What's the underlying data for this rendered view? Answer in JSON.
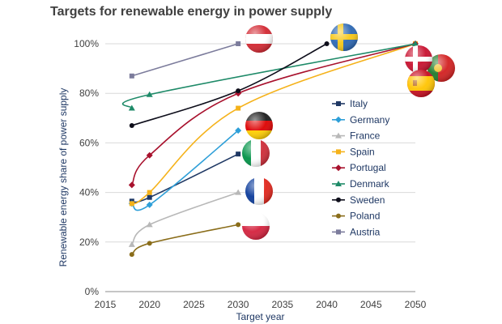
{
  "chart_data": {
    "type": "line",
    "title": "Targets for renewable energy in power supply",
    "xlabel": "Target year",
    "ylabel": "Renewable energy share of power supply",
    "xlim": [
      2015,
      2050
    ],
    "ylim": [
      0,
      100
    ],
    "x_ticks": [
      "2015",
      "2020",
      "2025",
      "2030",
      "2035",
      "2040",
      "2045",
      "2050"
    ],
    "y_ticks": [
      "0%",
      "20%",
      "40%",
      "60%",
      "80%",
      "100%"
    ],
    "legend_position": "center-right",
    "series": [
      {
        "name": "Italy",
        "color": "#1f3864",
        "marker": "square",
        "flag": "italy-flag-icon",
        "points": [
          [
            2018,
            36.5
          ],
          [
            2020,
            38
          ],
          [
            2030,
            55.5
          ]
        ]
      },
      {
        "name": "Germany",
        "color": "#2e9fd8",
        "marker": "diamond",
        "flag": "germany-flag-icon",
        "points": [
          [
            2018,
            35.5
          ],
          [
            2020,
            35
          ],
          [
            2030,
            65
          ]
        ]
      },
      {
        "name": "France",
        "color": "#b8b8b8",
        "marker": "triangle",
        "flag": "france-flag-icon",
        "points": [
          [
            2018,
            19
          ],
          [
            2020,
            27
          ],
          [
            2030,
            40
          ]
        ]
      },
      {
        "name": "Spain",
        "color": "#f5b21a",
        "marker": "square",
        "flag": "spain-flag-icon",
        "points": [
          [
            2018,
            35.5
          ],
          [
            2020,
            40
          ],
          [
            2030,
            74
          ],
          [
            2050,
            100
          ]
        ]
      },
      {
        "name": "Portugal",
        "color": "#a8112d",
        "marker": "diamond",
        "flag": "portugal-flag-icon",
        "points": [
          [
            2018,
            43
          ],
          [
            2020,
            55
          ],
          [
            2030,
            80
          ],
          [
            2050,
            100
          ]
        ]
      },
      {
        "name": "Denmark",
        "color": "#1e8a68",
        "marker": "triangle",
        "flag": "denmark-flag-icon",
        "points": [
          [
            2018,
            74
          ],
          [
            2020,
            79.5
          ],
          [
            2050,
            100
          ]
        ]
      },
      {
        "name": "Sweden",
        "color": "#0d0d1a",
        "marker": "circle",
        "flag": "sweden-flag-icon",
        "points": [
          [
            2018,
            67
          ],
          [
            2030,
            81
          ],
          [
            2040,
            100
          ]
        ]
      },
      {
        "name": "Poland",
        "color": "#8a6d1a",
        "marker": "circle",
        "flag": "poland-flag-icon",
        "points": [
          [
            2018,
            15
          ],
          [
            2020,
            19.5
          ],
          [
            2030,
            27
          ]
        ]
      },
      {
        "name": "Austria",
        "color": "#7c7c9c",
        "marker": "square",
        "flag": "austria-flag-icon",
        "points": [
          [
            2018,
            87
          ],
          [
            2030,
            100
          ]
        ]
      }
    ]
  }
}
